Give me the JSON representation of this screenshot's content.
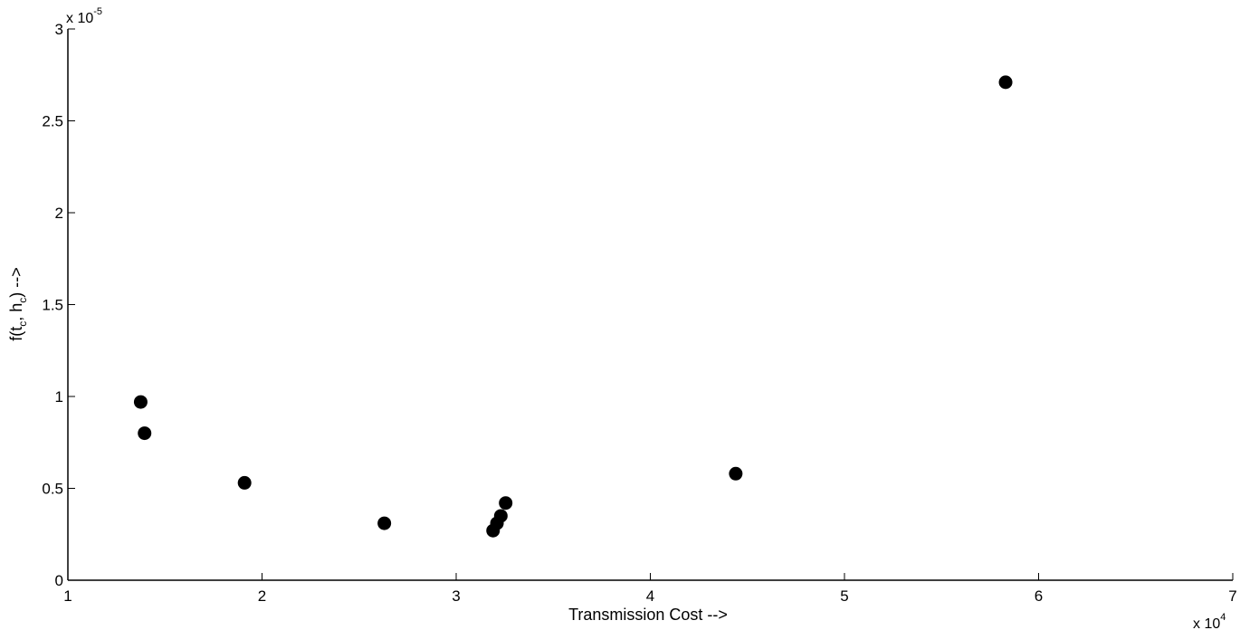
{
  "chart_data": {
    "type": "scatter",
    "title": "",
    "xlabel": "Transmission Cost -->",
    "ylabel": {
      "prefix": "f(t",
      "sub1": "c",
      "middle": ", h",
      "sub2": "c",
      "suffix": ") -->"
    },
    "x_multiplier": {
      "base": "x 10",
      "exp": "4"
    },
    "y_multiplier": {
      "base": "x 10",
      "exp": "-5"
    },
    "xlim": [
      1,
      7
    ],
    "ylim": [
      0,
      3
    ],
    "xticks": [
      1,
      2,
      3,
      4,
      5,
      6,
      7
    ],
    "yticks": [
      0,
      0.5,
      1,
      1.5,
      2,
      2.5,
      3
    ],
    "xtick_labels": [
      "1",
      "2",
      "3",
      "4",
      "5",
      "6",
      "7"
    ],
    "ytick_labels": [
      "0",
      "0.5",
      "1",
      "1.5",
      "2",
      "2.5",
      "3"
    ],
    "grid": false,
    "marker_color": "#000000",
    "points": [
      {
        "x": 1.375,
        "y": 0.97
      },
      {
        "x": 1.395,
        "y": 0.8
      },
      {
        "x": 1.91,
        "y": 0.53
      },
      {
        "x": 2.63,
        "y": 0.31
      },
      {
        "x": 3.19,
        "y": 0.27
      },
      {
        "x": 3.21,
        "y": 0.31
      },
      {
        "x": 3.23,
        "y": 0.35
      },
      {
        "x": 3.255,
        "y": 0.42
      },
      {
        "x": 4.44,
        "y": 0.58
      },
      {
        "x": 5.83,
        "y": 2.71
      }
    ]
  }
}
